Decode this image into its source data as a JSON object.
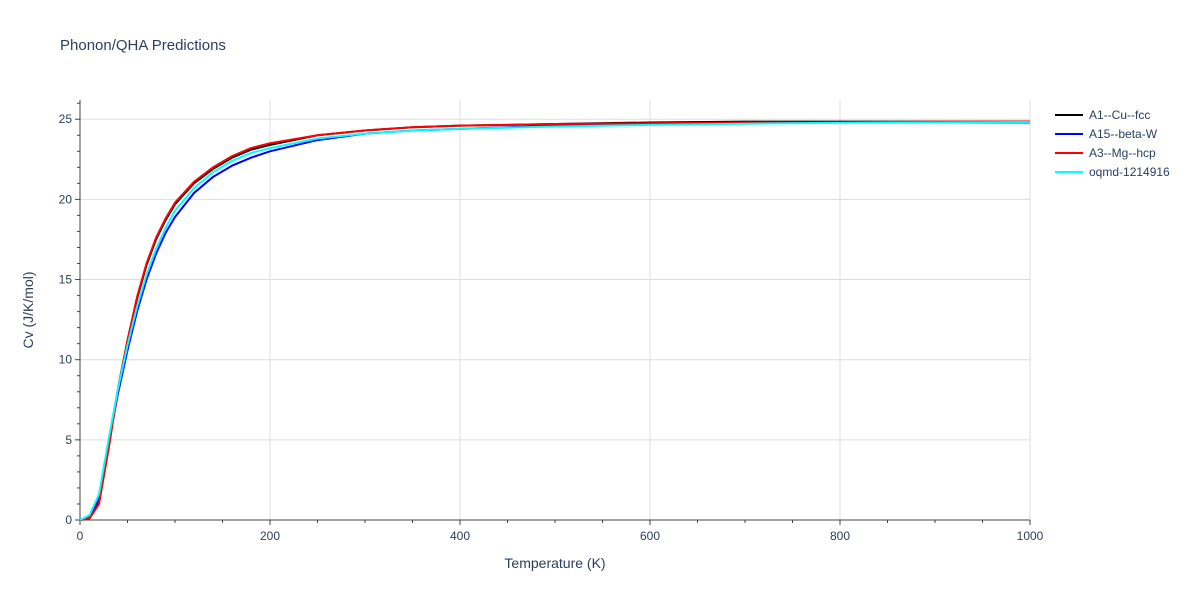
{
  "chart_data": {
    "type": "line",
    "title": "Phonon/QHA Predictions",
    "xlabel": "Temperature (K)",
    "ylabel": "Cv (J/K/mol)",
    "xlim": [
      0,
      1000
    ],
    "ylim": [
      0,
      26.2
    ],
    "xticks": [
      0,
      200,
      400,
      600,
      800,
      1000
    ],
    "xtick_labels": [
      "0",
      "200",
      "400",
      "600",
      "800",
      "1000"
    ],
    "yticks": [
      0,
      5,
      10,
      15,
      20,
      25
    ],
    "ytick_labels": [
      "0",
      "5",
      "10",
      "15",
      "20",
      "25"
    ],
    "grid": true,
    "legend_position": "right",
    "series": [
      {
        "name": "A1--Cu--fcc",
        "color": "#000000",
        "x": [
          0,
          10,
          20,
          30,
          40,
          50,
          60,
          70,
          80,
          90,
          100,
          120,
          140,
          160,
          180,
          200,
          250,
          300,
          350,
          400,
          500,
          600,
          700,
          800,
          900,
          1000
        ],
        "y": [
          0,
          0.1,
          1.1,
          4.5,
          8.2,
          11.2,
          13.8,
          15.9,
          17.5,
          18.7,
          19.7,
          21.0,
          21.9,
          22.6,
          23.1,
          23.4,
          24.0,
          24.3,
          24.5,
          24.6,
          24.7,
          24.8,
          24.85,
          24.85,
          24.85,
          24.85
        ]
      },
      {
        "name": "A15--beta-W",
        "color": "#0000ff",
        "x": [
          0,
          10,
          20,
          30,
          40,
          50,
          60,
          70,
          80,
          90,
          100,
          120,
          140,
          160,
          180,
          200,
          250,
          300,
          350,
          400,
          500,
          600,
          700,
          800,
          900,
          1000
        ],
        "y": [
          0,
          0.2,
          1.4,
          4.8,
          7.9,
          10.6,
          13.0,
          15.0,
          16.6,
          17.9,
          18.9,
          20.4,
          21.4,
          22.1,
          22.6,
          23.0,
          23.7,
          24.1,
          24.3,
          24.4,
          24.6,
          24.7,
          24.75,
          24.8,
          24.8,
          24.8
        ]
      },
      {
        "name": "A3--Mg--hcp",
        "color": "#ff0000",
        "x": [
          0,
          10,
          20,
          30,
          40,
          50,
          60,
          70,
          80,
          90,
          100,
          120,
          140,
          160,
          180,
          200,
          250,
          300,
          350,
          400,
          500,
          600,
          700,
          800,
          900,
          1000
        ],
        "y": [
          0,
          0.1,
          1.0,
          4.4,
          8.1,
          11.2,
          13.9,
          16.0,
          17.6,
          18.8,
          19.8,
          21.1,
          22.0,
          22.7,
          23.2,
          23.5,
          24.0,
          24.3,
          24.5,
          24.6,
          24.7,
          24.75,
          24.8,
          24.8,
          24.85,
          24.85
        ]
      },
      {
        "name": "oqmd-1214916",
        "color": "#00ffff",
        "x": [
          0,
          10,
          20,
          30,
          40,
          50,
          60,
          70,
          80,
          90,
          100,
          120,
          140,
          160,
          180,
          200,
          250,
          300,
          350,
          400,
          500,
          600,
          700,
          800,
          900,
          1000
        ],
        "y": [
          0,
          0.3,
          1.6,
          5.0,
          8.2,
          10.9,
          13.3,
          15.3,
          16.9,
          18.2,
          19.3,
          20.7,
          21.7,
          22.4,
          22.9,
          23.2,
          23.8,
          24.1,
          24.3,
          24.4,
          24.55,
          24.65,
          24.72,
          24.78,
          24.8,
          24.82
        ]
      }
    ]
  }
}
